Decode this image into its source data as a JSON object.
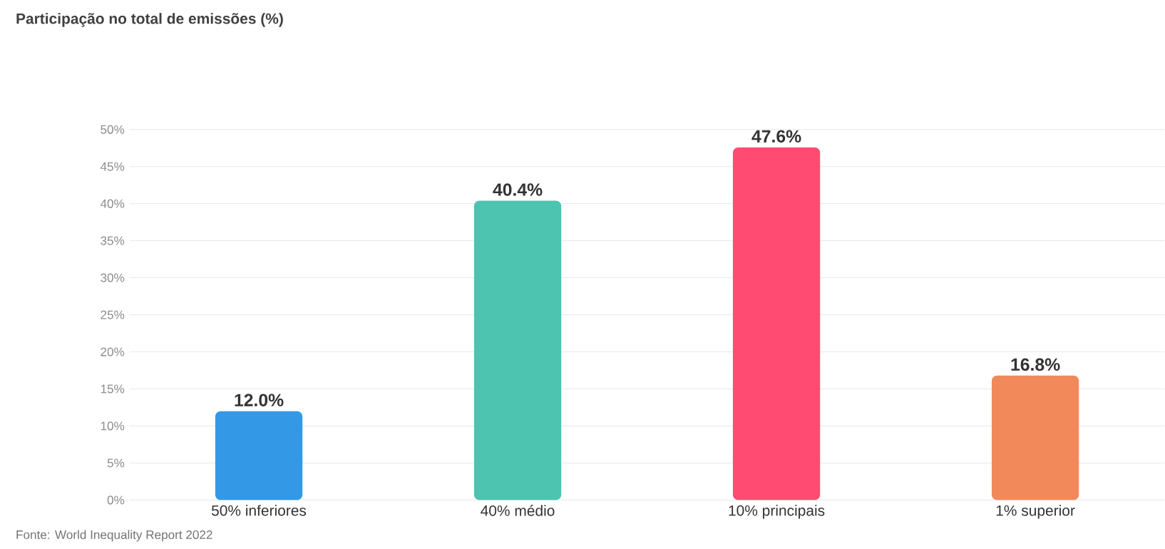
{
  "chart_data": {
    "type": "bar",
    "title": "Participação no total de emissões (%)",
    "categories": [
      "50% inferiores",
      "40% médio",
      "10% principais",
      "1% superior"
    ],
    "values": [
      12.0,
      40.4,
      47.6,
      16.8
    ],
    "colors": [
      "#3399e6",
      "#4cc4b0",
      "#ff4b72",
      "#f2895a"
    ],
    "value_labels": [
      "12.0%",
      "40.4%",
      "47.6%",
      "16.8%"
    ],
    "ylim": [
      0,
      50
    ],
    "yticks": [
      {
        "value": 0,
        "label": "0%"
      },
      {
        "value": 5,
        "label": "5%"
      },
      {
        "value": 10,
        "label": "10%"
      },
      {
        "value": 15,
        "label": "15%"
      },
      {
        "value": 20,
        "label": "20%"
      },
      {
        "value": 25,
        "label": "25%"
      },
      {
        "value": 30,
        "label": "30%"
      },
      {
        "value": 35,
        "label": "35%"
      },
      {
        "value": 40,
        "label": "40%"
      },
      {
        "value": 45,
        "label": "45%"
      },
      {
        "value": 50,
        "label": "50%"
      }
    ],
    "grid": "y",
    "annotations": [
      "Fonte: World Inequality Report 2022"
    ]
  }
}
